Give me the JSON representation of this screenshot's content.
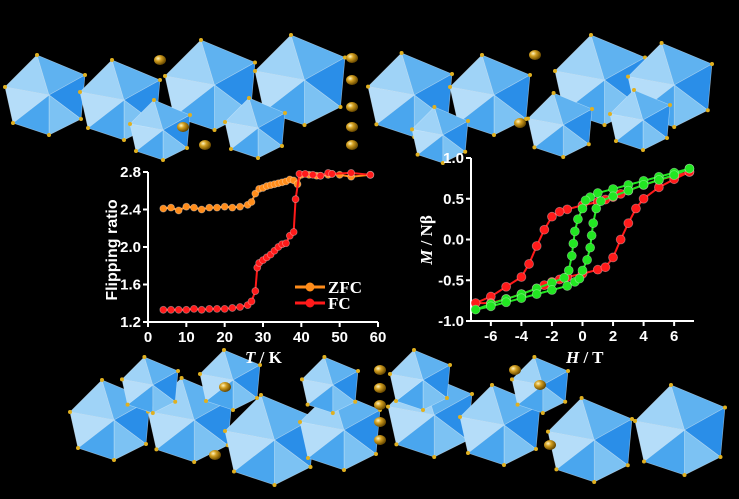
{
  "colors": {
    "zfc": "#ff8c1a",
    "fc": "#ff1a1a",
    "green": "#22e622",
    "poly_light": "#8cc8f5",
    "poly_dark": "#1e8ae6",
    "sphere": "#d4a020"
  },
  "chart_data": [
    {
      "type": "line",
      "title": "",
      "xlabel_italic": "T",
      "xlabel_unit": " / K",
      "ylabel": "Flipping ratio",
      "xlim": [
        0,
        60
      ],
      "ylim": [
        1.2,
        2.8
      ],
      "xticks": [
        "0",
        "10",
        "20",
        "30",
        "40",
        "50",
        "60"
      ],
      "yticks": [
        "1.2",
        "1.6",
        "2.0",
        "2.4",
        "2.8"
      ],
      "legend_position": "bottom-right",
      "series": [
        {
          "name": "ZFC",
          "x": [
            4,
            6,
            8,
            10,
            12,
            14,
            16,
            18,
            20,
            22,
            24,
            26,
            27,
            28,
            29,
            30,
            31,
            32,
            33,
            34,
            35,
            36,
            37,
            38,
            39,
            40,
            42,
            44,
            45,
            47,
            48,
            50,
            53,
            58
          ],
          "y": [
            2.41,
            2.42,
            2.39,
            2.43,
            2.42,
            2.4,
            2.42,
            2.42,
            2.43,
            2.42,
            2.43,
            2.45,
            2.48,
            2.57,
            2.62,
            2.63,
            2.65,
            2.66,
            2.67,
            2.68,
            2.69,
            2.7,
            2.72,
            2.71,
            2.67,
            2.77,
            2.77,
            2.76,
            2.76,
            2.77,
            2.78,
            2.77,
            2.75,
            2.77
          ]
        },
        {
          "name": "FC",
          "x": [
            4,
            6,
            8,
            10,
            12,
            14,
            16,
            18,
            20,
            22,
            24,
            26,
            27,
            28,
            28.5,
            29,
            30,
            31,
            32,
            33,
            34,
            35,
            36,
            37,
            38,
            38.5,
            39.5,
            41,
            43,
            45,
            47,
            48,
            53,
            58
          ],
          "y": [
            1.33,
            1.33,
            1.33,
            1.33,
            1.34,
            1.33,
            1.34,
            1.34,
            1.34,
            1.35,
            1.36,
            1.38,
            1.42,
            1.53,
            1.78,
            1.83,
            1.86,
            1.89,
            1.92,
            1.96,
            2.0,
            2.03,
            2.04,
            2.12,
            2.16,
            2.51,
            2.78,
            2.78,
            2.77,
            2.76,
            2.79,
            2.78,
            2.79,
            2.77
          ]
        }
      ]
    },
    {
      "type": "line",
      "title": "",
      "xlabel_italic": "H",
      "xlabel_unit": " / T",
      "ylabel_italic": "M",
      "ylabel_unit": " / Nβ",
      "xlim": [
        -7.3,
        7.3
      ],
      "ylim": [
        -1.0,
        1.0
      ],
      "xticks": [
        "-6",
        "-4",
        "-2",
        "0",
        "2",
        "4",
        "6"
      ],
      "yticks": [
        "-1.0",
        "-0.5",
        "0.0",
        "0.5",
        "1.0"
      ],
      "series": [
        {
          "name": "red-loop",
          "color": "red",
          "x": [
            7,
            6,
            5,
            4,
            3,
            2.5,
            2,
            1.5,
            1,
            0,
            -1,
            -1.5,
            -2,
            -2.5,
            -3,
            -3.5,
            -4,
            -5,
            -6,
            -7,
            -6,
            -5,
            -4,
            -3,
            -2.5,
            -2,
            -1.5,
            -1,
            0,
            1,
            1.5,
            2,
            2.5,
            3,
            3.5,
            4,
            5,
            6,
            7
          ],
          "y": [
            0.83,
            0.78,
            0.73,
            0.67,
            0.6,
            0.56,
            0.52,
            0.49,
            0.46,
            0.42,
            0.37,
            0.34,
            0.28,
            0.12,
            -0.08,
            -0.3,
            -0.46,
            -0.58,
            -0.7,
            -0.78,
            -0.78,
            -0.73,
            -0.67,
            -0.6,
            -0.56,
            -0.52,
            -0.49,
            -0.46,
            -0.42,
            -0.37,
            -0.34,
            -0.22,
            0.0,
            0.2,
            0.38,
            0.5,
            0.64,
            0.74,
            0.83
          ]
        },
        {
          "name": "green-loop",
          "color": "green",
          "x": [
            7,
            6,
            5,
            4,
            3,
            2,
            1,
            0.5,
            0.2,
            0,
            -0.3,
            -0.5,
            -0.6,
            -0.7,
            -0.9,
            -1.2,
            -2,
            -3,
            -4,
            -5,
            -6,
            -7,
            -6,
            -5,
            -4,
            -3,
            -2,
            -1,
            -0.5,
            -0.2,
            0,
            0.3,
            0.5,
            0.6,
            0.7,
            0.9,
            1.2,
            2,
            3,
            4,
            5,
            6,
            7
          ],
          "y": [
            0.87,
            0.82,
            0.77,
            0.72,
            0.67,
            0.62,
            0.57,
            0.52,
            0.48,
            0.38,
            0.25,
            0.1,
            -0.05,
            -0.2,
            -0.38,
            -0.47,
            -0.53,
            -0.6,
            -0.67,
            -0.73,
            -0.79,
            -0.86,
            -0.82,
            -0.77,
            -0.72,
            -0.67,
            -0.62,
            -0.57,
            -0.52,
            -0.48,
            -0.38,
            -0.25,
            -0.1,
            0.05,
            0.2,
            0.38,
            0.47,
            0.53,
            0.6,
            0.67,
            0.73,
            0.79,
            0.87
          ]
        }
      ]
    }
  ]
}
